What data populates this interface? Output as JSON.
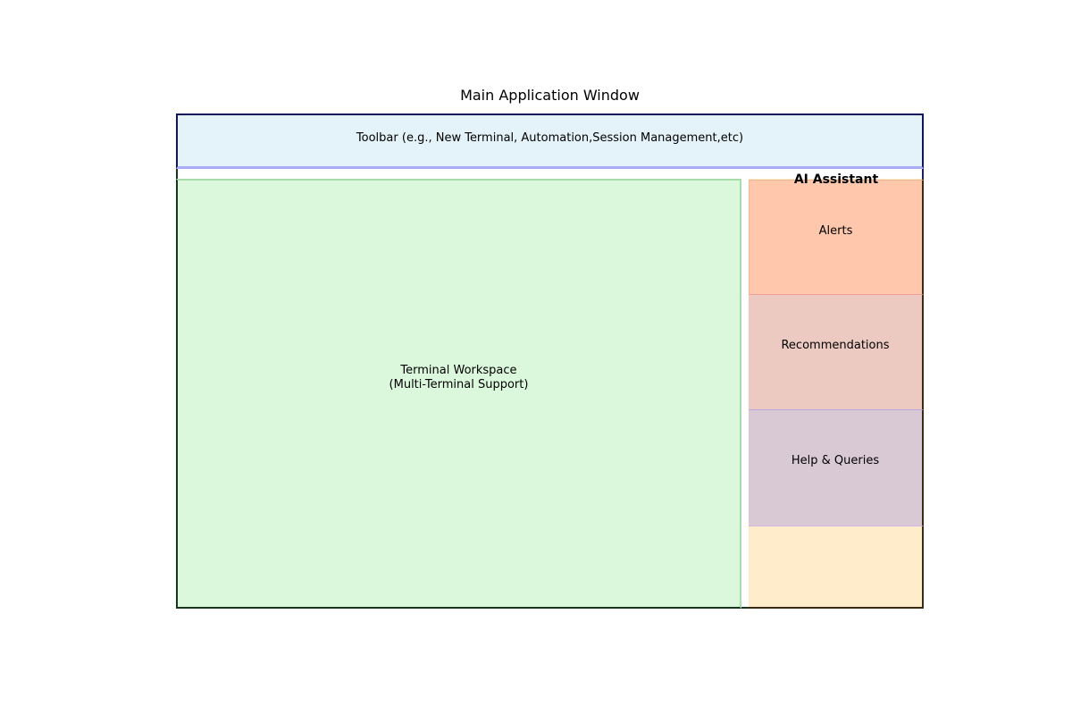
{
  "diagram": {
    "title": "Main Application Window",
    "toolbar": {
      "label": "Toolbar (e.g., New Terminal, Automation,Session Management,etc)"
    },
    "workspace": {
      "line1": "Terminal Workspace",
      "line2": "(Multi-Terminal Support)"
    },
    "assistant": {
      "title": "AI Assistant",
      "panels": [
        {
          "label": "Alerts"
        },
        {
          "label": "Recommendations"
        },
        {
          "label": "Help & Queries"
        }
      ]
    }
  },
  "colors": {
    "toolbar_fill": "#e4f3f9",
    "workspace_fill": "#dbf8dd",
    "alerts_fill": "#ffc8ad",
    "recommendations_fill": "#ecc9c1",
    "help_fill": "#d9c9d4",
    "assistant_fill": "#ffecca",
    "window_border": "#12155e"
  }
}
